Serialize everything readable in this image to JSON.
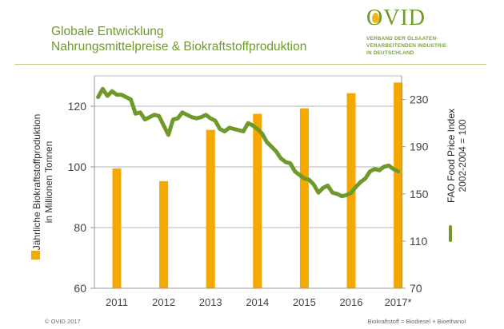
{
  "header": {
    "title_line1": "Globale Entwicklung",
    "title_line2": "Nahrungsmittelpreise & Biokraftstoffproduktion"
  },
  "logo": {
    "wordmark": "OVID",
    "subtitle_line1": "VERBAND DER ÖLSAATEN-",
    "subtitle_line2": "VERARBEITENDEN INDUSTRIE",
    "subtitle_line3": "IN DEUTSCHLAND",
    "brand_color": "#6f9a2a",
    "accent_color": "#f2b21b"
  },
  "footer": {
    "copyright": "© OVID 2017",
    "note": "Biokraftstoff = Biodiesel + Bioethanol"
  },
  "chart_data": {
    "type": "bar+line",
    "title": "Globale Entwicklung Nahrungsmittelpreise & Biokraftstoffproduktion",
    "categories": [
      "2011",
      "2012",
      "2013",
      "2014",
      "2015",
      "2016",
      "2017*"
    ],
    "left_axis": {
      "label_line1": "Jährliche Biokraftstoffproduktion",
      "label_line2": "in Millionen Tonnen",
      "ticks": [
        60,
        80,
        100,
        120
      ],
      "range": [
        60,
        130
      ]
    },
    "right_axis": {
      "label_line1": "FAO Food Price Index",
      "label_line2": "2002-2004 = 100",
      "ticks": [
        70,
        110,
        150,
        190,
        230
      ],
      "range": [
        70,
        250
      ]
    },
    "grid": true,
    "series": [
      {
        "name": "Jährliche Biokraftstoffproduktion in Millionen Tonnen",
        "type": "bar",
        "axis": "left",
        "color": "#f5a800",
        "values": [
          99.5,
          95.3,
          112.2,
          117.5,
          119.3,
          124.3,
          127.8
        ]
      },
      {
        "name": "FAO Food Price Index 2002-2004 = 100",
        "type": "line",
        "axis": "right",
        "color": "#6f9a2a",
        "x": [
          2010.6,
          2010.7,
          2010.8,
          2010.9,
          2011.0,
          2011.1,
          2011.2,
          2011.3,
          2011.4,
          2011.5,
          2011.6,
          2011.7,
          2011.8,
          2011.9,
          2012.0,
          2012.1,
          2012.2,
          2012.3,
          2012.4,
          2012.5,
          2012.6,
          2012.7,
          2012.8,
          2012.9,
          2013.0,
          2013.1,
          2013.2,
          2013.3,
          2013.4,
          2013.5,
          2013.6,
          2013.7,
          2013.8,
          2013.9,
          2014.0,
          2014.1,
          2014.2,
          2014.3,
          2014.4,
          2014.5,
          2014.6,
          2014.7,
          2014.8,
          2014.9,
          2015.0,
          2015.1,
          2015.2,
          2015.3,
          2015.4,
          2015.5,
          2015.6,
          2015.7,
          2015.8,
          2015.9,
          2016.0,
          2016.1,
          2016.2,
          2016.3,
          2016.4,
          2016.5,
          2016.6,
          2016.7,
          2016.8,
          2016.9,
          2017.0
        ],
        "values": [
          232,
          239,
          233,
          237,
          234,
          234,
          232,
          230,
          218,
          219,
          213,
          215,
          217,
          216,
          208,
          200,
          213,
          214,
          219,
          217,
          215,
          214,
          215,
          217,
          214,
          212,
          205,
          203,
          206,
          205,
          204,
          203,
          210,
          208,
          205,
          201,
          194,
          190,
          186,
          180,
          177,
          176,
          169,
          166,
          163,
          162,
          158,
          151,
          155,
          157,
          151,
          150,
          148,
          149,
          151,
          156,
          160,
          163,
          169,
          171,
          170,
          173,
          174,
          171,
          169
        ]
      }
    ],
    "legend": [
      {
        "label": "Jährliche Biokraftstoffproduktion in Millionen Tonnen",
        "placement": "left",
        "color": "#f5a800"
      },
      {
        "label": "FAO Food Price Index 2002-2004 = 100",
        "placement": "right",
        "color": "#6f9a2a"
      }
    ]
  }
}
